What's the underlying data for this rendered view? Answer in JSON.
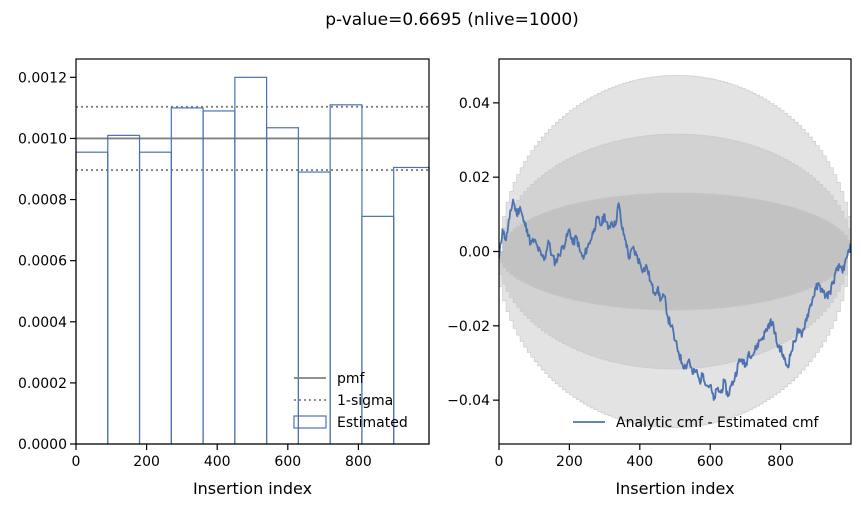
{
  "figure": {
    "suptitle": "p-value=0.6695 (nlive=1000)"
  },
  "colors": {
    "estimated": "#4c72b0",
    "pmf": "#808080",
    "band_outer": "#e3e3e3",
    "band_mid": "#d2d2d2",
    "band_inner": "#c2c2c2"
  },
  "chart_data": [
    {
      "type": "histogram",
      "xlabel": "Insertion index",
      "ylabel": "",
      "xlim": [
        0,
        1000
      ],
      "ylim": [
        0,
        0.00126
      ],
      "xticks": [
        0,
        200,
        400,
        600,
        800
      ],
      "xtick_labels": [
        "0",
        "200",
        "400",
        "600",
        "800"
      ],
      "yticks": [
        0,
        0.0002,
        0.0004,
        0.0006,
        0.0008,
        0.001,
        0.0012
      ],
      "ytick_labels": [
        "0.0000",
        "0.0002",
        "0.0004",
        "0.0006",
        "0.0008",
        "0.0010",
        "0.0012"
      ],
      "bin_edges": [
        0,
        90,
        180,
        270,
        360,
        450,
        540,
        630,
        720,
        810,
        900,
        1000
      ],
      "estimated": [
        0.000955,
        0.00101,
        0.000955,
        0.0011,
        0.00109,
        0.0012,
        0.001035,
        0.00089,
        0.00111,
        0.000745,
        0.000905
      ],
      "pmf": 0.001,
      "one_sigma": [
        0.0008965,
        0.0011035
      ],
      "legend": {
        "location": "lower right",
        "entries": [
          "pmf",
          "1-sigma",
          "Estimated"
        ]
      }
    },
    {
      "type": "line",
      "xlabel": "Insertion index",
      "ylabel": "",
      "xlim": [
        0,
        1000
      ],
      "ylim": [
        -0.0518,
        0.0518
      ],
      "xticks": [
        0,
        200,
        400,
        600,
        800
      ],
      "xtick_labels": [
        "0",
        "200",
        "400",
        "600",
        "800"
      ],
      "yticks": [
        -0.04,
        -0.02,
        0.0,
        0.02,
        0.04
      ],
      "ytick_labels": [
        "−0.04",
        "−0.02",
        "0.00",
        "0.02",
        "0.04"
      ],
      "band_halfwidths_at_center": [
        0.0158,
        0.0316,
        0.0474
      ],
      "series": [
        {
          "name": "Analytic cmf - Estimated cmf",
          "x": [
            0,
            10,
            20,
            30,
            40,
            50,
            60,
            70,
            80,
            90,
            100,
            110,
            120,
            130,
            140,
            150,
            160,
            170,
            180,
            190,
            200,
            210,
            220,
            230,
            240,
            250,
            260,
            270,
            280,
            290,
            300,
            310,
            320,
            330,
            340,
            350,
            360,
            370,
            380,
            390,
            400,
            410,
            420,
            430,
            440,
            450,
            460,
            470,
            480,
            490,
            500,
            510,
            520,
            530,
            540,
            550,
            560,
            570,
            580,
            590,
            600,
            610,
            620,
            630,
            640,
            650,
            660,
            670,
            680,
            690,
            700,
            710,
            720,
            730,
            740,
            750,
            760,
            770,
            780,
            790,
            800,
            810,
            820,
            830,
            840,
            850,
            860,
            870,
            880,
            890,
            900,
            910,
            920,
            930,
            940,
            950,
            960,
            970,
            980,
            990,
            1000
          ],
          "values": [
            -0.002,
            0.006,
            0.003,
            0.009,
            0.014,
            0.01,
            0.012,
            0.008,
            0.006,
            0.002,
            0.003,
            0.001,
            -0.001,
            -0.002,
            0.003,
            -0.001,
            -0.003,
            -0.001,
            0.001,
            0.003,
            0.006,
            0.002,
            0.004,
            0.0,
            -0.002,
            0.001,
            0.003,
            0.006,
            0.009,
            0.007,
            0.01,
            0.006,
            0.008,
            0.007,
            0.013,
            0.006,
            0.003,
            -0.002,
            0.001,
            -0.001,
            -0.003,
            -0.005,
            -0.004,
            -0.008,
            -0.011,
            -0.01,
            -0.013,
            -0.012,
            -0.018,
            -0.02,
            -0.024,
            -0.027,
            -0.03,
            -0.031,
            -0.029,
            -0.033,
            -0.032,
            -0.035,
            -0.033,
            -0.036,
            -0.036,
            -0.04,
            -0.037,
            -0.038,
            -0.035,
            -0.039,
            -0.036,
            -0.034,
            -0.03,
            -0.029,
            -0.031,
            -0.027,
            -0.028,
            -0.026,
            -0.024,
            -0.023,
            -0.021,
            -0.019,
            -0.02,
            -0.025,
            -0.026,
            -0.029,
            -0.031,
            -0.027,
            -0.024,
            -0.021,
            -0.023,
            -0.019,
            -0.016,
            -0.013,
            -0.01,
            -0.009,
            -0.011,
            -0.012,
            -0.011,
            -0.008,
            -0.005,
            -0.004,
            -0.005,
            -0.001,
            0.002
          ]
        }
      ],
      "legend": {
        "location": "lower right",
        "entries": [
          "Analytic cmf - Estimated cmf"
        ]
      }
    }
  ]
}
